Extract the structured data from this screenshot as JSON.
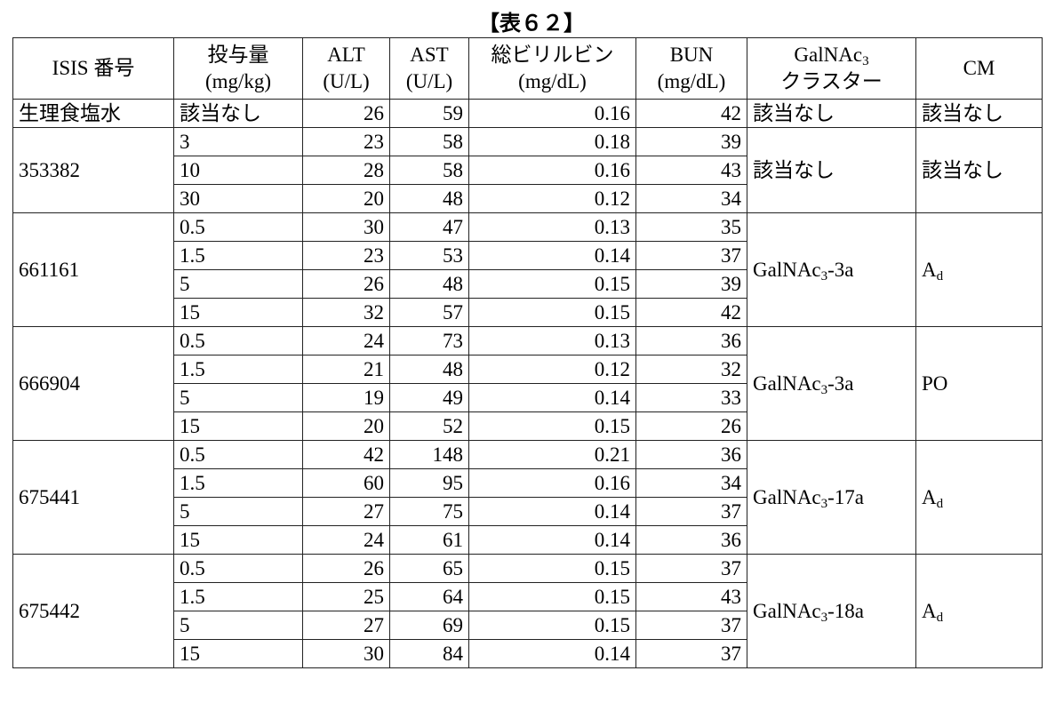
{
  "title": "【表６２】",
  "table": {
    "header": [
      [
        "ISIS 番号"
      ],
      [
        "投与量",
        "(mg/kg)"
      ],
      [
        "ALT",
        "(U/L)"
      ],
      [
        "AST",
        "(U/L)"
      ],
      [
        "総ビリルビン",
        "(mg/dL)"
      ],
      [
        "BUN",
        "(mg/dL)"
      ],
      [
        {
          "text": "GalNAc",
          "sub": "3"
        },
        "クラスター"
      ],
      [
        "CM"
      ]
    ],
    "groups": [
      {
        "isis": "生理食塩水",
        "cluster": "該当なし",
        "cm": "該当なし",
        "rows": [
          [
            "該当なし",
            26,
            59,
            0.16,
            42
          ]
        ]
      },
      {
        "isis": "353382",
        "cluster": "該当なし",
        "cm": "該当なし",
        "rows": [
          [
            3,
            23,
            58,
            0.18,
            39
          ],
          [
            10,
            28,
            58,
            0.16,
            43
          ],
          [
            30,
            20,
            48,
            0.12,
            34
          ]
        ]
      },
      {
        "isis": "661161",
        "cluster": {
          "text": "GalNAc",
          "sub": "3",
          "after": "-3a"
        },
        "cm": {
          "text": "A",
          "sub": "d"
        },
        "rows": [
          [
            0.5,
            30,
            47,
            0.13,
            35
          ],
          [
            1.5,
            23,
            53,
            0.14,
            37
          ],
          [
            5,
            26,
            48,
            0.15,
            39
          ],
          [
            15,
            32,
            57,
            0.15,
            42
          ]
        ]
      },
      {
        "isis": "666904",
        "cluster": {
          "text": "GalNAc",
          "sub": "3",
          "after": "-3a"
        },
        "cm": "PO",
        "rows": [
          [
            0.5,
            24,
            73,
            0.13,
            36
          ],
          [
            1.5,
            21,
            48,
            0.12,
            32
          ],
          [
            5,
            19,
            49,
            0.14,
            33
          ],
          [
            15,
            20,
            52,
            0.15,
            26
          ]
        ]
      },
      {
        "isis": "675441",
        "cluster": {
          "text": "GalNAc",
          "sub": "3",
          "after": "-17a"
        },
        "cm": {
          "text": "A",
          "sub": "d"
        },
        "rows": [
          [
            0.5,
            42,
            148,
            0.21,
            36
          ],
          [
            1.5,
            60,
            95,
            0.16,
            34
          ],
          [
            5,
            27,
            75,
            0.14,
            37
          ],
          [
            15,
            24,
            61,
            0.14,
            36
          ]
        ]
      },
      {
        "isis": "675442",
        "cluster": {
          "text": "GalNAc",
          "sub": "3",
          "after": "-18a"
        },
        "cm": {
          "text": "A",
          "sub": "d"
        },
        "rows": [
          [
            0.5,
            26,
            65,
            0.15,
            37
          ],
          [
            1.5,
            25,
            64,
            0.15,
            43
          ],
          [
            5,
            27,
            69,
            0.15,
            37
          ],
          [
            15,
            30,
            84,
            0.14,
            37
          ]
        ]
      }
    ]
  }
}
